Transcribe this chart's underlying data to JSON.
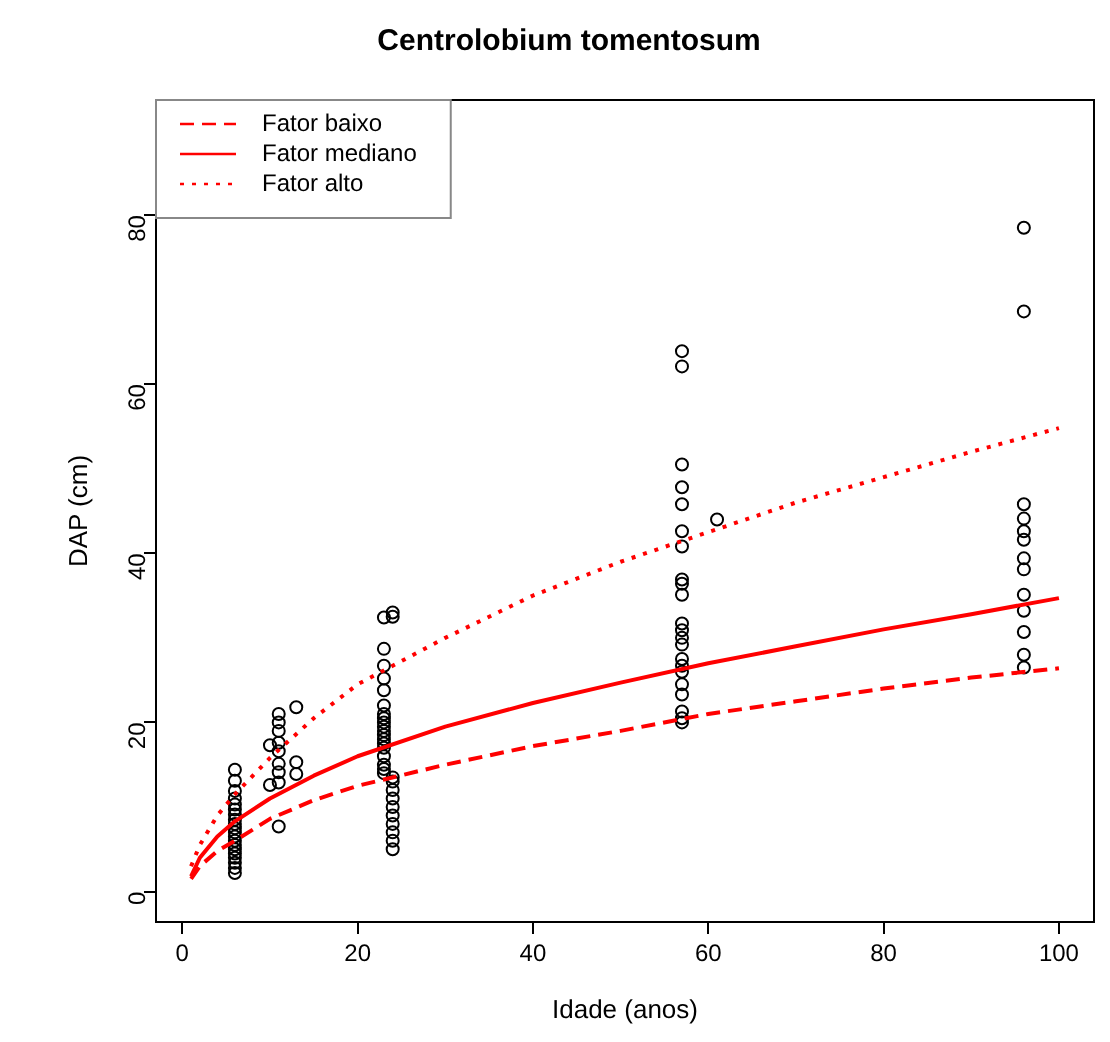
{
  "chart_data": {
    "type": "line",
    "title": "Centrolobium tomentosum",
    "xlabel": "Idade (anos)",
    "ylabel": "DAP (cm)",
    "xlim": [
      -3,
      104
    ],
    "ylim": [
      -3.6,
      93.6
    ],
    "xticks": [
      0,
      20,
      40,
      60,
      80,
      100
    ],
    "yticks": [
      0,
      20,
      40,
      60,
      80
    ],
    "grid": false,
    "legend": "top left",
    "series": [
      {
        "name": "Fator baixo",
        "color": "#ff0000",
        "line_style": "dashed",
        "marker": "none",
        "x": [
          1,
          2,
          4,
          6,
          10,
          15,
          20,
          30,
          40,
          50,
          60,
          70,
          80,
          90,
          100
        ],
        "values": [
          1.5,
          3,
          4.8,
          6,
          8.6,
          10.8,
          12.5,
          15,
          17.2,
          19,
          21,
          22.5,
          24,
          25.3,
          26.4
        ]
      },
      {
        "name": "Fator mediano",
        "color": "#ff0000",
        "line_style": "solid",
        "marker": "none",
        "x": [
          1,
          2,
          4,
          6,
          10,
          15,
          20,
          30,
          40,
          50,
          60,
          70,
          80,
          90,
          100
        ],
        "values": [
          1.8,
          4,
          6.5,
          8.3,
          11,
          13.7,
          16,
          19.5,
          22.3,
          24.7,
          27,
          29,
          31,
          32.8,
          34.7
        ]
      },
      {
        "name": "Fator alto",
        "color": "#ff0000",
        "line_style": "dotted",
        "marker": "none",
        "x": [
          1,
          2,
          4,
          6,
          10,
          15,
          20,
          30,
          40,
          50,
          60,
          70,
          80,
          90,
          100
        ],
        "values": [
          3,
          5.5,
          9,
          11.5,
          15.8,
          20.5,
          24.5,
          30,
          35,
          39,
          42.5,
          46,
          49,
          52,
          54.8
        ]
      },
      {
        "type": "scatter",
        "color": "#000000",
        "marker": "circle",
        "x": [
          6,
          6,
          6,
          6,
          6,
          6,
          6,
          6,
          6,
          6,
          6,
          6,
          6,
          6,
          6,
          6,
          6,
          6,
          6,
          6,
          10,
          10,
          11,
          11,
          11,
          11,
          11,
          11,
          11,
          11,
          11,
          13,
          13,
          13,
          23,
          24,
          24,
          23,
          23,
          23,
          23,
          23,
          23,
          23,
          23,
          23,
          23,
          23,
          23,
          23,
          23,
          23,
          23,
          23,
          23,
          24,
          24,
          24,
          24,
          24,
          24,
          24,
          24,
          24,
          24,
          57,
          57,
          57,
          57,
          57,
          57,
          57,
          57,
          57,
          57,
          57,
          57,
          57,
          57,
          57,
          57,
          57,
          57,
          57,
          57,
          57,
          57,
          61,
          96,
          96,
          96,
          96,
          96,
          96,
          96,
          96,
          96,
          96,
          96,
          96,
          96
        ],
        "values": [
          14.4,
          13.1,
          11.9,
          11,
          10.3,
          9.7,
          9.1,
          8.5,
          8,
          7.5,
          7,
          6.5,
          6,
          5.5,
          5,
          4.5,
          4,
          3.4,
          2.8,
          2.2,
          17.3,
          12.6,
          21,
          20,
          19,
          17.6,
          16.6,
          15.1,
          14.1,
          12.9,
          7.7,
          21.8,
          15.3,
          13.9,
          32.4,
          33,
          32.5,
          28.7,
          26.7,
          25.2,
          23.8,
          22,
          21,
          20.5,
          20,
          19.5,
          19,
          18.5,
          18,
          17.5,
          17,
          16,
          15,
          14.5,
          14,
          13.5,
          13,
          12,
          11,
          10,
          9,
          8,
          7,
          6,
          5,
          63.9,
          62.1,
          50.5,
          47.8,
          45.8,
          42.6,
          40.8,
          36.9,
          36.4,
          35.1,
          31.7,
          30.9,
          30,
          29.2,
          27.5,
          26.7,
          26,
          24.5,
          23.3,
          21.3,
          20.5,
          20,
          44,
          78.5,
          68.6,
          45.8,
          44.1,
          42.6,
          41.6,
          39.4,
          38.1,
          35.1,
          33.2,
          30.7,
          28,
          26.5
        ]
      }
    ]
  }
}
